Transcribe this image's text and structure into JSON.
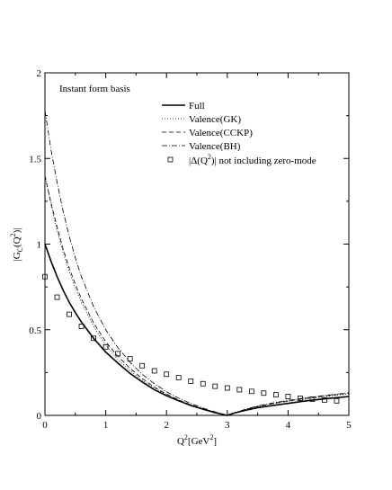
{
  "chart_data": {
    "type": "line",
    "annotation": "Instant form basis",
    "xlabel_main": "Q",
    "xlabel_sup": "2",
    "xlabel_rest": "[GeV",
    "xlabel_sup2": "2",
    "xlabel_end": "]",
    "ylabel": "|G_C(Q^2)|",
    "ylabel_text": "|G",
    "ylabel_sub": "C",
    "ylabel_mid": "(Q",
    "ylabel_sup": "2",
    "ylabel_end": ")|",
    "xlim": [
      0,
      5
    ],
    "ylim": [
      0,
      2
    ],
    "x_ticks": [
      "0",
      "1",
      "2",
      "3",
      "4",
      "5"
    ],
    "y_ticks": [
      "0",
      "0.5",
      "1",
      "1.5",
      "2"
    ],
    "legend_placement": "top-right",
    "series": [
      {
        "name": "Full",
        "style": "solid",
        "x": [
          0,
          0.1,
          0.2,
          0.3,
          0.4,
          0.5,
          0.6,
          0.8,
          1.0,
          1.2,
          1.4,
          1.6,
          1.8,
          2.0,
          2.2,
          2.4,
          2.6,
          2.8,
          2.95,
          3.0,
          3.1,
          3.3,
          3.5,
          3.8,
          4.0,
          4.3,
          4.6,
          5.0
        ],
        "y": [
          1.0,
          0.9,
          0.81,
          0.73,
          0.66,
          0.6,
          0.545,
          0.45,
          0.37,
          0.305,
          0.245,
          0.195,
          0.15,
          0.115,
          0.085,
          0.058,
          0.036,
          0.016,
          0.004,
          0.0,
          0.012,
          0.03,
          0.045,
          0.06,
          0.07,
          0.085,
          0.097,
          0.11
        ]
      },
      {
        "name": "Valence(GK)",
        "style": "dotted",
        "x": [
          0,
          0.1,
          0.2,
          0.3,
          0.4,
          0.5,
          0.6,
          0.8,
          1.0,
          1.2,
          1.4,
          1.6,
          1.8,
          2.0,
          2.2,
          2.4,
          2.6,
          2.8,
          2.95,
          3.0,
          3.1,
          3.3,
          3.5,
          3.8,
          4.0,
          4.3,
          4.6,
          5.0
        ],
        "y": [
          1.4,
          1.23,
          1.08,
          0.95,
          0.84,
          0.745,
          0.66,
          0.52,
          0.41,
          0.325,
          0.26,
          0.205,
          0.16,
          0.12,
          0.088,
          0.06,
          0.037,
          0.017,
          0.004,
          0.0,
          0.012,
          0.032,
          0.05,
          0.07,
          0.08,
          0.095,
          0.11,
          0.125
        ]
      },
      {
        "name": "Valence(CCKP)",
        "style": "dashed",
        "x": [
          0,
          0.1,
          0.2,
          0.3,
          0.4,
          0.5,
          0.6,
          0.8,
          1.0,
          1.2,
          1.4,
          1.6,
          1.8,
          2.0,
          2.2,
          2.4,
          2.6,
          2.8,
          2.95,
          3.0,
          3.1,
          3.3,
          3.5,
          3.8,
          4.0,
          4.3,
          4.6,
          5.0
        ],
        "y": [
          1.4,
          1.24,
          1.1,
          0.97,
          0.86,
          0.765,
          0.68,
          0.54,
          0.43,
          0.345,
          0.275,
          0.215,
          0.165,
          0.125,
          0.09,
          0.062,
          0.038,
          0.018,
          0.004,
          0.0,
          0.013,
          0.034,
          0.052,
          0.073,
          0.085,
          0.1,
          0.113,
          0.13
        ]
      },
      {
        "name": "Valence(BH)",
        "style": "dashdot",
        "x": [
          0,
          0.1,
          0.2,
          0.3,
          0.4,
          0.5,
          0.6,
          0.8,
          1.0,
          1.2,
          1.4,
          1.6,
          1.8,
          2.0,
          2.2,
          2.4,
          2.6,
          2.8,
          2.95,
          3.0,
          3.1,
          3.3,
          3.5,
          3.8,
          4.0,
          4.3,
          4.6,
          5.0
        ],
        "y": [
          1.78,
          1.55,
          1.36,
          1.19,
          1.045,
          0.92,
          0.81,
          0.635,
          0.5,
          0.395,
          0.31,
          0.24,
          0.185,
          0.138,
          0.1,
          0.07,
          0.043,
          0.02,
          0.005,
          0.0,
          0.014,
          0.036,
          0.055,
          0.076,
          0.088,
          0.103,
          0.116,
          0.132
        ]
      },
      {
        "name": "|Δ(Q²)| not including zero-mode",
        "legend_pre": "|Δ(Q",
        "legend_sup": "2",
        "legend_post": ")| not including zero-mode",
        "style": "squares",
        "x": [
          0.0,
          0.2,
          0.4,
          0.6,
          0.8,
          1.0,
          1.2,
          1.4,
          1.6,
          1.8,
          2.0,
          2.2,
          2.4,
          2.6,
          2.8,
          3.0,
          3.2,
          3.4,
          3.6,
          3.8,
          4.0,
          4.2,
          4.4,
          4.6,
          4.8
        ],
        "y": [
          0.81,
          0.69,
          0.59,
          0.52,
          0.45,
          0.4,
          0.36,
          0.33,
          0.29,
          0.26,
          0.24,
          0.22,
          0.2,
          0.185,
          0.17,
          0.16,
          0.15,
          0.14,
          0.13,
          0.12,
          0.11,
          0.1,
          0.095,
          0.09,
          0.085
        ]
      }
    ]
  }
}
